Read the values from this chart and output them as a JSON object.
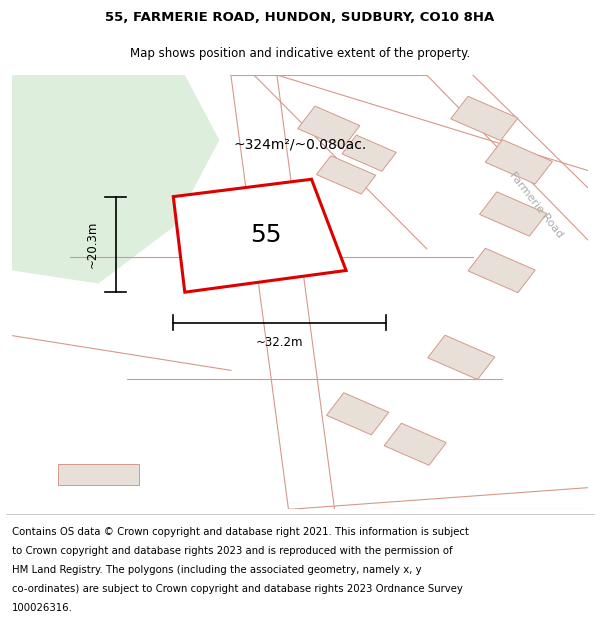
{
  "title_line1": "55, FARMERIE ROAD, HUNDON, SUDBURY, CO10 8HA",
  "title_line2": "Map shows position and indicative extent of the property.",
  "area_label": "~324m²/~0.080ac.",
  "property_number": "55",
  "dim_width": "~32.2m",
  "dim_height": "~20.3m",
  "road_label": "Farmerie Road",
  "map_bg_color": "#f7f7f2",
  "green_area_color": "#ddeedd",
  "plot_outline_color": "#dd0000",
  "road_line_color": "#d4998a",
  "building_fill": "#e8e0d8",
  "building_edge": "#d4998a",
  "road_fill": "#e8e0d8",
  "footer_lines": [
    "Contains OS data © Crown copyright and database right 2021. This information is subject",
    "to Crown copyright and database rights 2023 and is reproduced with the permission of",
    "HM Land Registry. The polygons (including the associated geometry, namely x, y",
    "co-ordinates) are subject to Crown copyright and database rights 2023 Ordnance Survey",
    "100026316."
  ],
  "map_xlim": [
    0,
    100
  ],
  "map_ylim": [
    0,
    100
  ]
}
